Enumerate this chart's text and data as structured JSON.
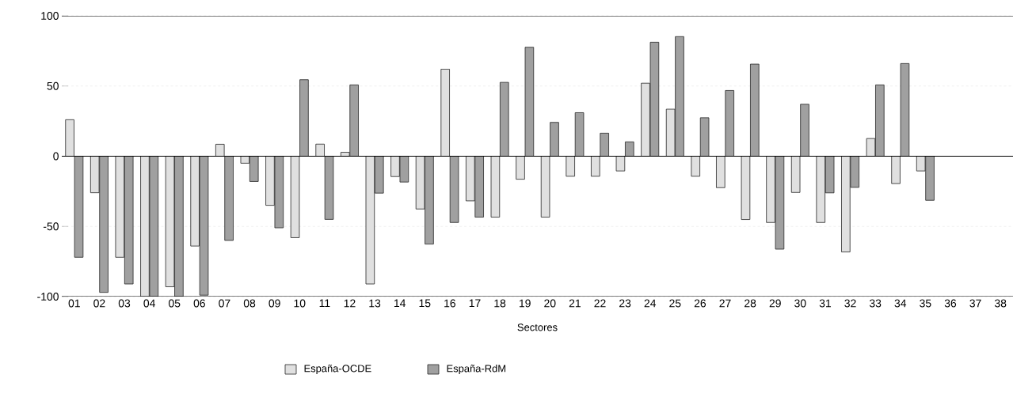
{
  "chart_data": {
    "type": "bar",
    "xlabel": "Sectores",
    "categories": [
      "01",
      "02",
      "03",
      "04",
      "05",
      "06",
      "07",
      "08",
      "09",
      "10",
      "11",
      "12",
      "13",
      "14",
      "15",
      "16",
      "17",
      "18",
      "19",
      "20",
      "21",
      "22",
      "23",
      "24",
      "25",
      "26",
      "27",
      "28",
      "29",
      "30",
      "31",
      "32",
      "33",
      "34",
      "35",
      "36",
      "37",
      "38"
    ],
    "series": [
      {
        "name": "España-OCDE",
        "color": "#e0e0e0",
        "values": [
          26,
          -26,
          -72,
          -100,
          -93,
          -64,
          8.5,
          -5,
          -35,
          -58,
          8.6,
          2.8,
          -91,
          -14.5,
          -37.6,
          62,
          -31.8,
          -43.4,
          -16.4,
          -43.4,
          -14.3,
          -14.3,
          -10.5,
          52,
          33.5,
          -14.3,
          -22.4,
          -45.1,
          -47.2,
          -25.8,
          -47.2,
          -68.2,
          12.6,
          -19.5,
          -10.5,
          null,
          null,
          null
        ]
      },
      {
        "name": "España-RdM",
        "color": "#a0a0a0",
        "values": [
          -72,
          -97,
          -91,
          -100,
          -100,
          -99,
          -60,
          -18,
          -51,
          54.5,
          -45,
          50.8,
          -26.3,
          -18.4,
          -62.6,
          -47.2,
          -43.4,
          52.6,
          77.6,
          24.1,
          31,
          16.4,
          10.2,
          81.2,
          85.2,
          27.4,
          46.8,
          65.6,
          -66.2,
          37,
          -26.1,
          -22.2,
          50.8,
          66,
          -31.4,
          null,
          null,
          null
        ]
      }
    ],
    "ylim": [
      -100,
      100
    ],
    "yticks": [
      -100,
      -50,
      0,
      50,
      100
    ],
    "grid": "y",
    "legend": "bottom"
  }
}
